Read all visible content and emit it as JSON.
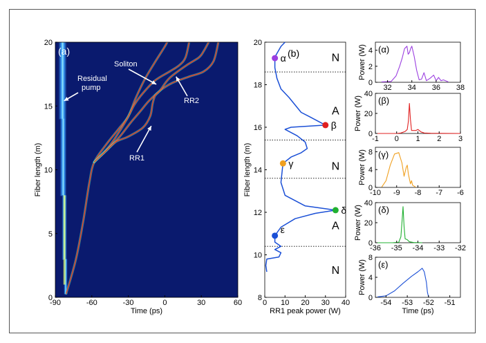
{
  "chart_data": [
    {
      "type": "heatmap",
      "panel_label": "(a)",
      "xlabel": "Time (ps)",
      "ylabel": "Fiber length (m)",
      "xlim": [
        -90,
        60
      ],
      "ylim": [
        0,
        20
      ],
      "xticks": [
        "-90",
        "-60",
        "-30",
        "0",
        "30",
        "60"
      ],
      "yticks": [
        "0",
        "5",
        "10",
        "15",
        "20"
      ],
      "colors": {
        "background": "#0a1a6e",
        "pump": "#3aa0ff",
        "trace_hot": "#ff3010",
        "trace_cool": "#60ffd0"
      },
      "annotations": [
        {
          "label_1": "Residual",
          "label_2": "pump",
          "target": [
            -84,
            15.4
          ]
        },
        {
          "label": "Soliton",
          "target": [
            -7,
            16.7
          ]
        },
        {
          "label": "RR2",
          "target": [
            7,
            17.3
          ]
        },
        {
          "label": "RR1",
          "target": [
            -10,
            13.6
          ]
        }
      ],
      "pump": [
        [
          -84,
          20
        ],
        [
          -84,
          14
        ],
        [
          -83,
          8
        ],
        [
          -82,
          3
        ],
        [
          -81,
          0.3
        ]
      ],
      "traces": [
        {
          "name": "Soliton",
          "points": [
            [
              -81,
              0.3
            ],
            [
              -73,
              3
            ],
            [
              -67,
              6
            ],
            [
              -62,
              9
            ],
            [
              -58,
              10.6
            ],
            [
              -48,
              12
            ],
            [
              -38,
              13.2
            ],
            [
              -30,
              14.2
            ],
            [
              -24,
              15.6
            ],
            [
              -17,
              17
            ],
            [
              -9,
              18.3
            ],
            [
              -1,
              19.5
            ],
            [
              2,
              20
            ]
          ]
        },
        {
          "name": "RR2",
          "points": [
            [
              -58,
              10.6
            ],
            [
              -46,
              11.8
            ],
            [
              -38,
              12.9
            ],
            [
              -31,
              14
            ],
            [
              -25,
              15.1
            ],
            [
              -18,
              16
            ],
            [
              -8,
              17
            ],
            [
              4,
              17.7
            ],
            [
              12,
              18.2
            ],
            [
              17,
              18.8
            ],
            [
              20,
              20
            ]
          ]
        },
        {
          "name": "RR2b",
          "points": [
            [
              -58,
              10.6
            ],
            [
              -46,
              11.7
            ],
            [
              -37,
              12.6
            ],
            [
              -28,
              13.7
            ],
            [
              -20,
              14.6
            ],
            [
              -13,
              15.4
            ],
            [
              -4,
              16.2
            ],
            [
              6,
              16.8
            ],
            [
              20,
              17.3
            ],
            [
              32,
              17.7
            ],
            [
              40,
              18.5
            ],
            [
              44,
              20
            ]
          ]
        },
        {
          "name": "RR1",
          "points": [
            [
              -58,
              10.6
            ],
            [
              -48,
              11.5
            ],
            [
              -40,
              12.2
            ],
            [
              -30,
              12.6
            ],
            [
              -18,
              13.3
            ],
            [
              -12,
              14.2
            ],
            [
              -10,
              15.2
            ],
            [
              -8,
              15.8
            ],
            [
              -4,
              16.2
            ],
            [
              4,
              17.2
            ],
            [
              18,
              18.2
            ],
            [
              28,
              18.8
            ],
            [
              32,
              19.3
            ],
            [
              36,
              20
            ]
          ]
        }
      ]
    },
    {
      "type": "line",
      "panel_label": "(b)",
      "xlabel": "RR1 peak power (W)",
      "ylabel": "Fiber length (m)",
      "xlim": [
        0,
        40
      ],
      "ylim": [
        8,
        20
      ],
      "xticks": [
        "0",
        "10",
        "20",
        "30",
        "40"
      ],
      "yticks": [
        "8",
        "10",
        "12",
        "14",
        "16",
        "18",
        "20"
      ],
      "line_color": "#1a4fd6",
      "points": [
        [
          1,
          9.2
        ],
        [
          0.5,
          9.5
        ],
        [
          1,
          9.8
        ],
        [
          7,
          9.9
        ],
        [
          8,
          10.1
        ],
        [
          5,
          10.25
        ],
        [
          8,
          10.4
        ],
        [
          5,
          10.6
        ],
        [
          5,
          10.9
        ],
        [
          8,
          11.3
        ],
        [
          15,
          11.7
        ],
        [
          25,
          11.95
        ],
        [
          35,
          12.1
        ],
        [
          20,
          12.3
        ],
        [
          10,
          12.8
        ],
        [
          8,
          13.4
        ],
        [
          9,
          14.3
        ],
        [
          13,
          14.6
        ],
        [
          18,
          14.8
        ],
        [
          21,
          15
        ],
        [
          20,
          15.3
        ],
        [
          16,
          15.6
        ],
        [
          10,
          15.9
        ],
        [
          13,
          16
        ],
        [
          30,
          16.1
        ],
        [
          22,
          16.5
        ],
        [
          18,
          16.7
        ],
        [
          12,
          17.4
        ],
        [
          8,
          17.8
        ],
        [
          6,
          18.3
        ],
        [
          5,
          18.8
        ],
        [
          5,
          19.3
        ],
        [
          8,
          19.8
        ],
        [
          10,
          20
        ]
      ],
      "dotted_lines_y": [
        18.6,
        15.4,
        13.6,
        10.4
      ],
      "region_labels": [
        {
          "text": "N",
          "at": [
            35,
            19.3
          ]
        },
        {
          "text": "A",
          "at": [
            35,
            16.8
          ]
        },
        {
          "text": "N",
          "at": [
            35,
            14.2
          ]
        },
        {
          "text": "A",
          "at": [
            35,
            11.4
          ]
        },
        {
          "text": "N",
          "at": [
            35,
            9.3
          ]
        }
      ],
      "markers": [
        {
          "label": "α",
          "at": [
            5,
            19.25
          ],
          "color": "#9b3fe0"
        },
        {
          "label": "β",
          "at": [
            30,
            16.1
          ],
          "color": "#e02020"
        },
        {
          "label": "γ",
          "at": [
            9,
            14.3
          ],
          "color": "#f0a020"
        },
        {
          "label": "δ",
          "at": [
            35,
            12.1
          ],
          "color": "#20b030"
        },
        {
          "label": "ε",
          "at": [
            5,
            10.9
          ],
          "color": "#1a4fd6"
        }
      ]
    },
    {
      "type": "line",
      "panel_label": "(α)",
      "ylabel": "Power (W)",
      "xlim": [
        31,
        38
      ],
      "ylim": [
        0,
        5
      ],
      "xticks": [
        "32",
        "34",
        "36",
        "38"
      ],
      "yticks": [
        "0",
        "2",
        "4"
      ],
      "color": "#9b3fe0",
      "points": [
        [
          31.5,
          0.05
        ],
        [
          32.3,
          0.1
        ],
        [
          32.7,
          0.8
        ],
        [
          33,
          2
        ],
        [
          33.2,
          3
        ],
        [
          33.4,
          4.2
        ],
        [
          33.6,
          4.5
        ],
        [
          33.7,
          3.5
        ],
        [
          33.8,
          3.7
        ],
        [
          33.9,
          4.2
        ],
        [
          34.0,
          4.5
        ],
        [
          34.2,
          3.2
        ],
        [
          34.4,
          1.5
        ],
        [
          34.6,
          0.3
        ],
        [
          34.8,
          0.4
        ],
        [
          35.0,
          1.2
        ],
        [
          35.2,
          0.2
        ],
        [
          35.5,
          0.5
        ],
        [
          35.8,
          0.9
        ],
        [
          36.0,
          0.2
        ],
        [
          36.2,
          0.6
        ],
        [
          36.4,
          0.2
        ],
        [
          36.6,
          0.3
        ],
        [
          37,
          0.05
        ]
      ]
    },
    {
      "type": "line",
      "panel_label": "(β)",
      "ylabel": "Power (W)",
      "xlim": [
        -1,
        3
      ],
      "ylim": [
        0,
        40
      ],
      "xticks": [
        "-1",
        "0",
        "1",
        "2",
        "3"
      ],
      "yticks": [
        "0",
        "20",
        "40"
      ],
      "color": "#e02020",
      "points": [
        [
          -1,
          0
        ],
        [
          0.0,
          0
        ],
        [
          0.2,
          0.5
        ],
        [
          0.4,
          2
        ],
        [
          0.5,
          4
        ],
        [
          0.55,
          12
        ],
        [
          0.6,
          30
        ],
        [
          0.65,
          14
        ],
        [
          0.7,
          3
        ],
        [
          0.9,
          3
        ],
        [
          1.0,
          4
        ],
        [
          1.15,
          1.5
        ],
        [
          1.3,
          0.5
        ],
        [
          1.6,
          0.2
        ],
        [
          3,
          0
        ]
      ]
    },
    {
      "type": "line",
      "panel_label": "(γ)",
      "ylabel": "Power (W)",
      "xlim": [
        -10,
        -6
      ],
      "ylim": [
        0,
        9
      ],
      "xticks": [
        "-10",
        "-9",
        "-8",
        "-7",
        "-6"
      ],
      "yticks": [
        "0",
        "4",
        "8"
      ],
      "color": "#f0a020",
      "points": [
        [
          -9.7,
          0.1
        ],
        [
          -9.5,
          1.5
        ],
        [
          -9.3,
          5
        ],
        [
          -9.1,
          7.5
        ],
        [
          -8.9,
          7.8
        ],
        [
          -8.75,
          5.5
        ],
        [
          -8.65,
          2.5
        ],
        [
          -8.55,
          4.5
        ],
        [
          -8.5,
          5
        ],
        [
          -8.45,
          3
        ],
        [
          -8.35,
          0.8
        ],
        [
          -8.3,
          1.5
        ],
        [
          -8.25,
          0.5
        ],
        [
          -8.1,
          0.05
        ]
      ]
    },
    {
      "type": "line",
      "panel_label": "(δ)",
      "ylabel": "Power (W)",
      "xlim": [
        -36,
        -32
      ],
      "ylim": [
        0,
        40
      ],
      "xticks": [
        "-36",
        "-35",
        "-34",
        "-33",
        "-32"
      ],
      "yticks": [
        "0",
        "20",
        "40"
      ],
      "color": "#20b030",
      "points": [
        [
          -36,
          0
        ],
        [
          -35.2,
          0
        ],
        [
          -34.9,
          0.5
        ],
        [
          -34.8,
          6
        ],
        [
          -34.75,
          20
        ],
        [
          -34.7,
          36
        ],
        [
          -34.65,
          16
        ],
        [
          -34.6,
          4
        ],
        [
          -34.5,
          3
        ],
        [
          -34.4,
          1
        ],
        [
          -34.2,
          0.2
        ],
        [
          -33.8,
          0
        ]
      ]
    },
    {
      "type": "line",
      "panel_label": "(ε)",
      "xlabel": "Time (ps)",
      "ylabel": "Power (W)",
      "xlim": [
        -54.5,
        -50.5
      ],
      "ylim": [
        0,
        8
      ],
      "xticks": [
        "-54",
        "-53",
        "-52",
        "-51"
      ],
      "yticks": [
        "0",
        "4",
        "8"
      ],
      "color": "#1a4fd6",
      "points": [
        [
          -54.4,
          0.1
        ],
        [
          -54.0,
          0.3
        ],
        [
          -53.6,
          1.3
        ],
        [
          -53.2,
          2.8
        ],
        [
          -52.8,
          4.2
        ],
        [
          -52.5,
          5.1
        ],
        [
          -52.3,
          5.8
        ],
        [
          -52.2,
          5.1
        ],
        [
          -52.1,
          3
        ],
        [
          -52.05,
          1
        ],
        [
          -52.0,
          0.1
        ]
      ]
    }
  ]
}
